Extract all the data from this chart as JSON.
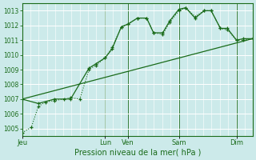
{
  "title": "Pression niveau de la mer( hPa )",
  "bg_color": "#cceaea",
  "grid_color": "#b0d8d8",
  "line_color": "#1a6b1a",
  "dark_line_color": "#2d7a2d",
  "ylim": [
    1004.5,
    1013.5
  ],
  "yticks": [
    1005,
    1006,
    1007,
    1008,
    1009,
    1010,
    1011,
    1012,
    1013
  ],
  "day_labels": [
    "Jeu",
    "Lun",
    "Ven",
    "Sam",
    "Dim"
  ],
  "day_positions": [
    0.0,
    0.36,
    0.46,
    0.68,
    0.93
  ],
  "series1_x": [
    0.0,
    0.04,
    0.07,
    0.1,
    0.14,
    0.18,
    0.21,
    0.25,
    0.29,
    0.32,
    0.36,
    0.39,
    0.43,
    0.46,
    0.5,
    0.54,
    0.57,
    0.61,
    0.64,
    0.68,
    0.71,
    0.75,
    0.79,
    0.82,
    0.86,
    0.89,
    0.93,
    0.96,
    1.0
  ],
  "series1_y": [
    1004.7,
    1005.1,
    1006.5,
    1006.8,
    1006.9,
    1007.0,
    1007.1,
    1007.0,
    1009.0,
    1009.3,
    1009.8,
    1010.5,
    1011.9,
    1012.1,
    1012.5,
    1012.5,
    1011.5,
    1011.4,
    1012.2,
    1013.0,
    1013.2,
    1012.6,
    1013.0,
    1013.0,
    1011.8,
    1011.7,
    1011.0,
    1011.0,
    1011.1
  ],
  "series2_x": [
    0.0,
    0.07,
    0.14,
    0.21,
    0.29,
    0.32,
    0.36,
    0.39,
    0.43,
    0.46,
    0.5,
    0.54,
    0.57,
    0.61,
    0.64,
    0.68,
    0.71,
    0.75,
    0.79,
    0.82,
    0.86,
    0.89,
    0.93,
    0.96,
    1.0
  ],
  "series2_y": [
    1007.0,
    1006.7,
    1007.0,
    1007.0,
    1009.1,
    1009.4,
    1009.8,
    1010.4,
    1011.9,
    1012.1,
    1012.5,
    1012.5,
    1011.5,
    1011.5,
    1012.3,
    1013.1,
    1013.2,
    1012.5,
    1013.0,
    1013.0,
    1011.8,
    1011.8,
    1011.0,
    1011.1,
    1011.1
  ],
  "series3_x": [
    0.0,
    1.0
  ],
  "series3_y": [
    1007.0,
    1011.1
  ],
  "xlim": [
    0.0,
    1.0
  ]
}
